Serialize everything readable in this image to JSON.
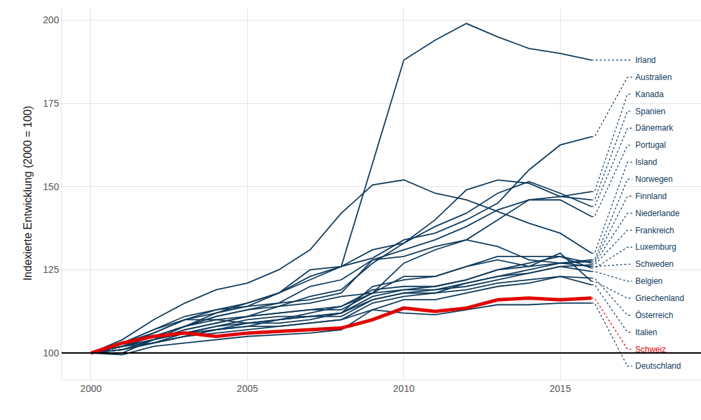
{
  "chart_data": {
    "type": "line",
    "y_title": "Indexierte Entwicklung (2000 = 100)",
    "x": [
      2000,
      2001,
      2002,
      2003,
      2004,
      2005,
      2006,
      2007,
      2008,
      2009,
      2010,
      2011,
      2012,
      2013,
      2014,
      2015,
      2016
    ],
    "xlim": [
      1999.06,
      2019.5
    ],
    "xticks": [
      2000,
      2005,
      2010,
      2015
    ],
    "ylim": [
      92,
      204
    ],
    "yticks": [
      100,
      125,
      150,
      175,
      200
    ],
    "baseline": 100,
    "grid": true,
    "series": [
      {
        "name": "Irland",
        "color": "#0f3a5c",
        "line_style": "solid",
        "values": [
          100,
          102,
          105,
          108,
          112,
          115,
          118,
          122,
          126,
          157,
          188,
          194,
          199,
          195,
          191.5,
          190,
          188
        ]
      },
      {
        "name": "Australien",
        "color": "#0f3a5c",
        "line_style": "solid",
        "values": [
          100,
          103,
          106,
          110,
          113,
          114,
          118,
          125,
          126,
          128.5,
          134,
          136,
          140,
          145,
          155,
          162.5,
          165
        ]
      },
      {
        "name": "Kanada",
        "color": "#0f3a5c",
        "line_style": "solid",
        "values": [
          100,
          102,
          105,
          108,
          111,
          113,
          115,
          120,
          122,
          128,
          131,
          134,
          138,
          143,
          146,
          147,
          148.5
        ]
      },
      {
        "name": "Spanien",
        "color": "#0f3a5c",
        "line_style": "solid",
        "values": [
          100,
          101,
          104,
          108,
          111,
          113,
          114,
          117,
          119,
          127,
          133,
          140,
          149,
          152,
          151,
          147,
          146
        ]
      },
      {
        "name": "Dänemark",
        "color": "#0f3a5c",
        "line_style": "solid",
        "values": [
          100,
          103,
          107,
          111,
          113,
          115,
          118,
          123,
          126,
          131,
          133,
          138,
          142,
          148,
          151.5,
          148,
          144
        ]
      },
      {
        "name": "Portugal",
        "color": "#0f3a5c",
        "line_style": "solid",
        "values": [
          100,
          102,
          103,
          105,
          107,
          109,
          110,
          112,
          114,
          118,
          127,
          131,
          134,
          140,
          146,
          146,
          141
        ]
      },
      {
        "name": "Island",
        "color": "#0f3a5c",
        "line_style": "solid",
        "values": [
          100,
          104,
          110,
          115,
          119,
          121,
          125,
          131,
          142,
          150.5,
          152,
          148,
          146,
          142.5,
          139,
          136,
          130
        ]
      },
      {
        "name": "Norwegen",
        "color": "#0f3a5c",
        "line_style": "solid",
        "values": [
          100,
          102,
          106,
          110,
          112,
          114,
          115,
          116,
          118,
          128,
          129,
          132,
          134,
          132,
          128,
          127,
          128
        ]
      },
      {
        "name": "Finnland",
        "color": "#0f3a5c",
        "line_style": "solid",
        "values": [
          100,
          102,
          104,
          107,
          109,
          111,
          112,
          113,
          114,
          119,
          120,
          120,
          122,
          125,
          126,
          127,
          127.5
        ]
      },
      {
        "name": "Niederlande",
        "color": "#0f3a5c",
        "line_style": "solid",
        "values": [
          100,
          102,
          105,
          108,
          110,
          111,
          112,
          113,
          113,
          118,
          119,
          120,
          122,
          125,
          127,
          129,
          127
        ]
      },
      {
        "name": "Frankreich",
        "color": "#0f3a5c",
        "line_style": "solid",
        "values": [
          100,
          101,
          103,
          105,
          107,
          108,
          110,
          111,
          112,
          117,
          119,
          119,
          120,
          122,
          124,
          126,
          126.5
        ]
      },
      {
        "name": "Luxemburg",
        "color": "#0f3a5c",
        "line_style": "solid",
        "values": [
          100,
          103,
          107,
          110,
          110,
          109,
          109,
          110,
          112,
          120,
          122,
          123,
          126,
          129,
          129,
          129,
          125.5
        ]
      },
      {
        "name": "Schweden",
        "color": "#0f3a5c",
        "line_style": "solid",
        "values": [
          100,
          101,
          103,
          106,
          108,
          109,
          110,
          111,
          111,
          116,
          118,
          118,
          121,
          123,
          125,
          127,
          126
        ]
      },
      {
        "name": "Belgien",
        "color": "#0f3a5c",
        "line_style": "solid",
        "values": [
          100,
          102,
          104,
          106,
          108,
          110,
          111,
          111,
          112,
          116,
          118,
          119,
          121,
          123,
          124,
          126,
          124.5
        ]
      },
      {
        "name": "Griechenland",
        "color": "#0f3a5c",
        "line_style": "solid",
        "values": [
          100,
          100,
          104,
          107,
          109,
          111,
          114,
          115,
          117,
          118,
          123,
          123,
          126,
          128,
          126,
          130,
          121.5
        ]
      },
      {
        "name": "Österreich",
        "color": "#0f3a5c",
        "line_style": "solid",
        "values": [
          100,
          101,
          103,
          105,
          106,
          107,
          108,
          109,
          110,
          115,
          117,
          118,
          119,
          121,
          122,
          123,
          122.5
        ]
      },
      {
        "name": "Italien",
        "color": "#0f3a5c",
        "line_style": "solid",
        "values": [
          100,
          102,
          104,
          106,
          107,
          108,
          108,
          109,
          110,
          113,
          116,
          116,
          118,
          120,
          121,
          123,
          120.5
        ]
      },
      {
        "name": "Schweiz",
        "color": "#e00000",
        "line_style": "thick",
        "values": [
          100,
          103,
          105,
          106,
          105,
          106,
          106.5,
          107,
          107.5,
          110,
          113.5,
          112.5,
          113.5,
          116,
          116.5,
          116,
          116.5
        ]
      },
      {
        "name": "Deutschland",
        "color": "#0f3a5c",
        "line_style": "solid",
        "values": [
          100,
          99.5,
          102,
          103,
          104,
          105,
          105.5,
          106,
          107,
          113,
          112,
          111.5,
          113,
          114.5,
          114.5,
          115,
          115
        ]
      }
    ]
  }
}
